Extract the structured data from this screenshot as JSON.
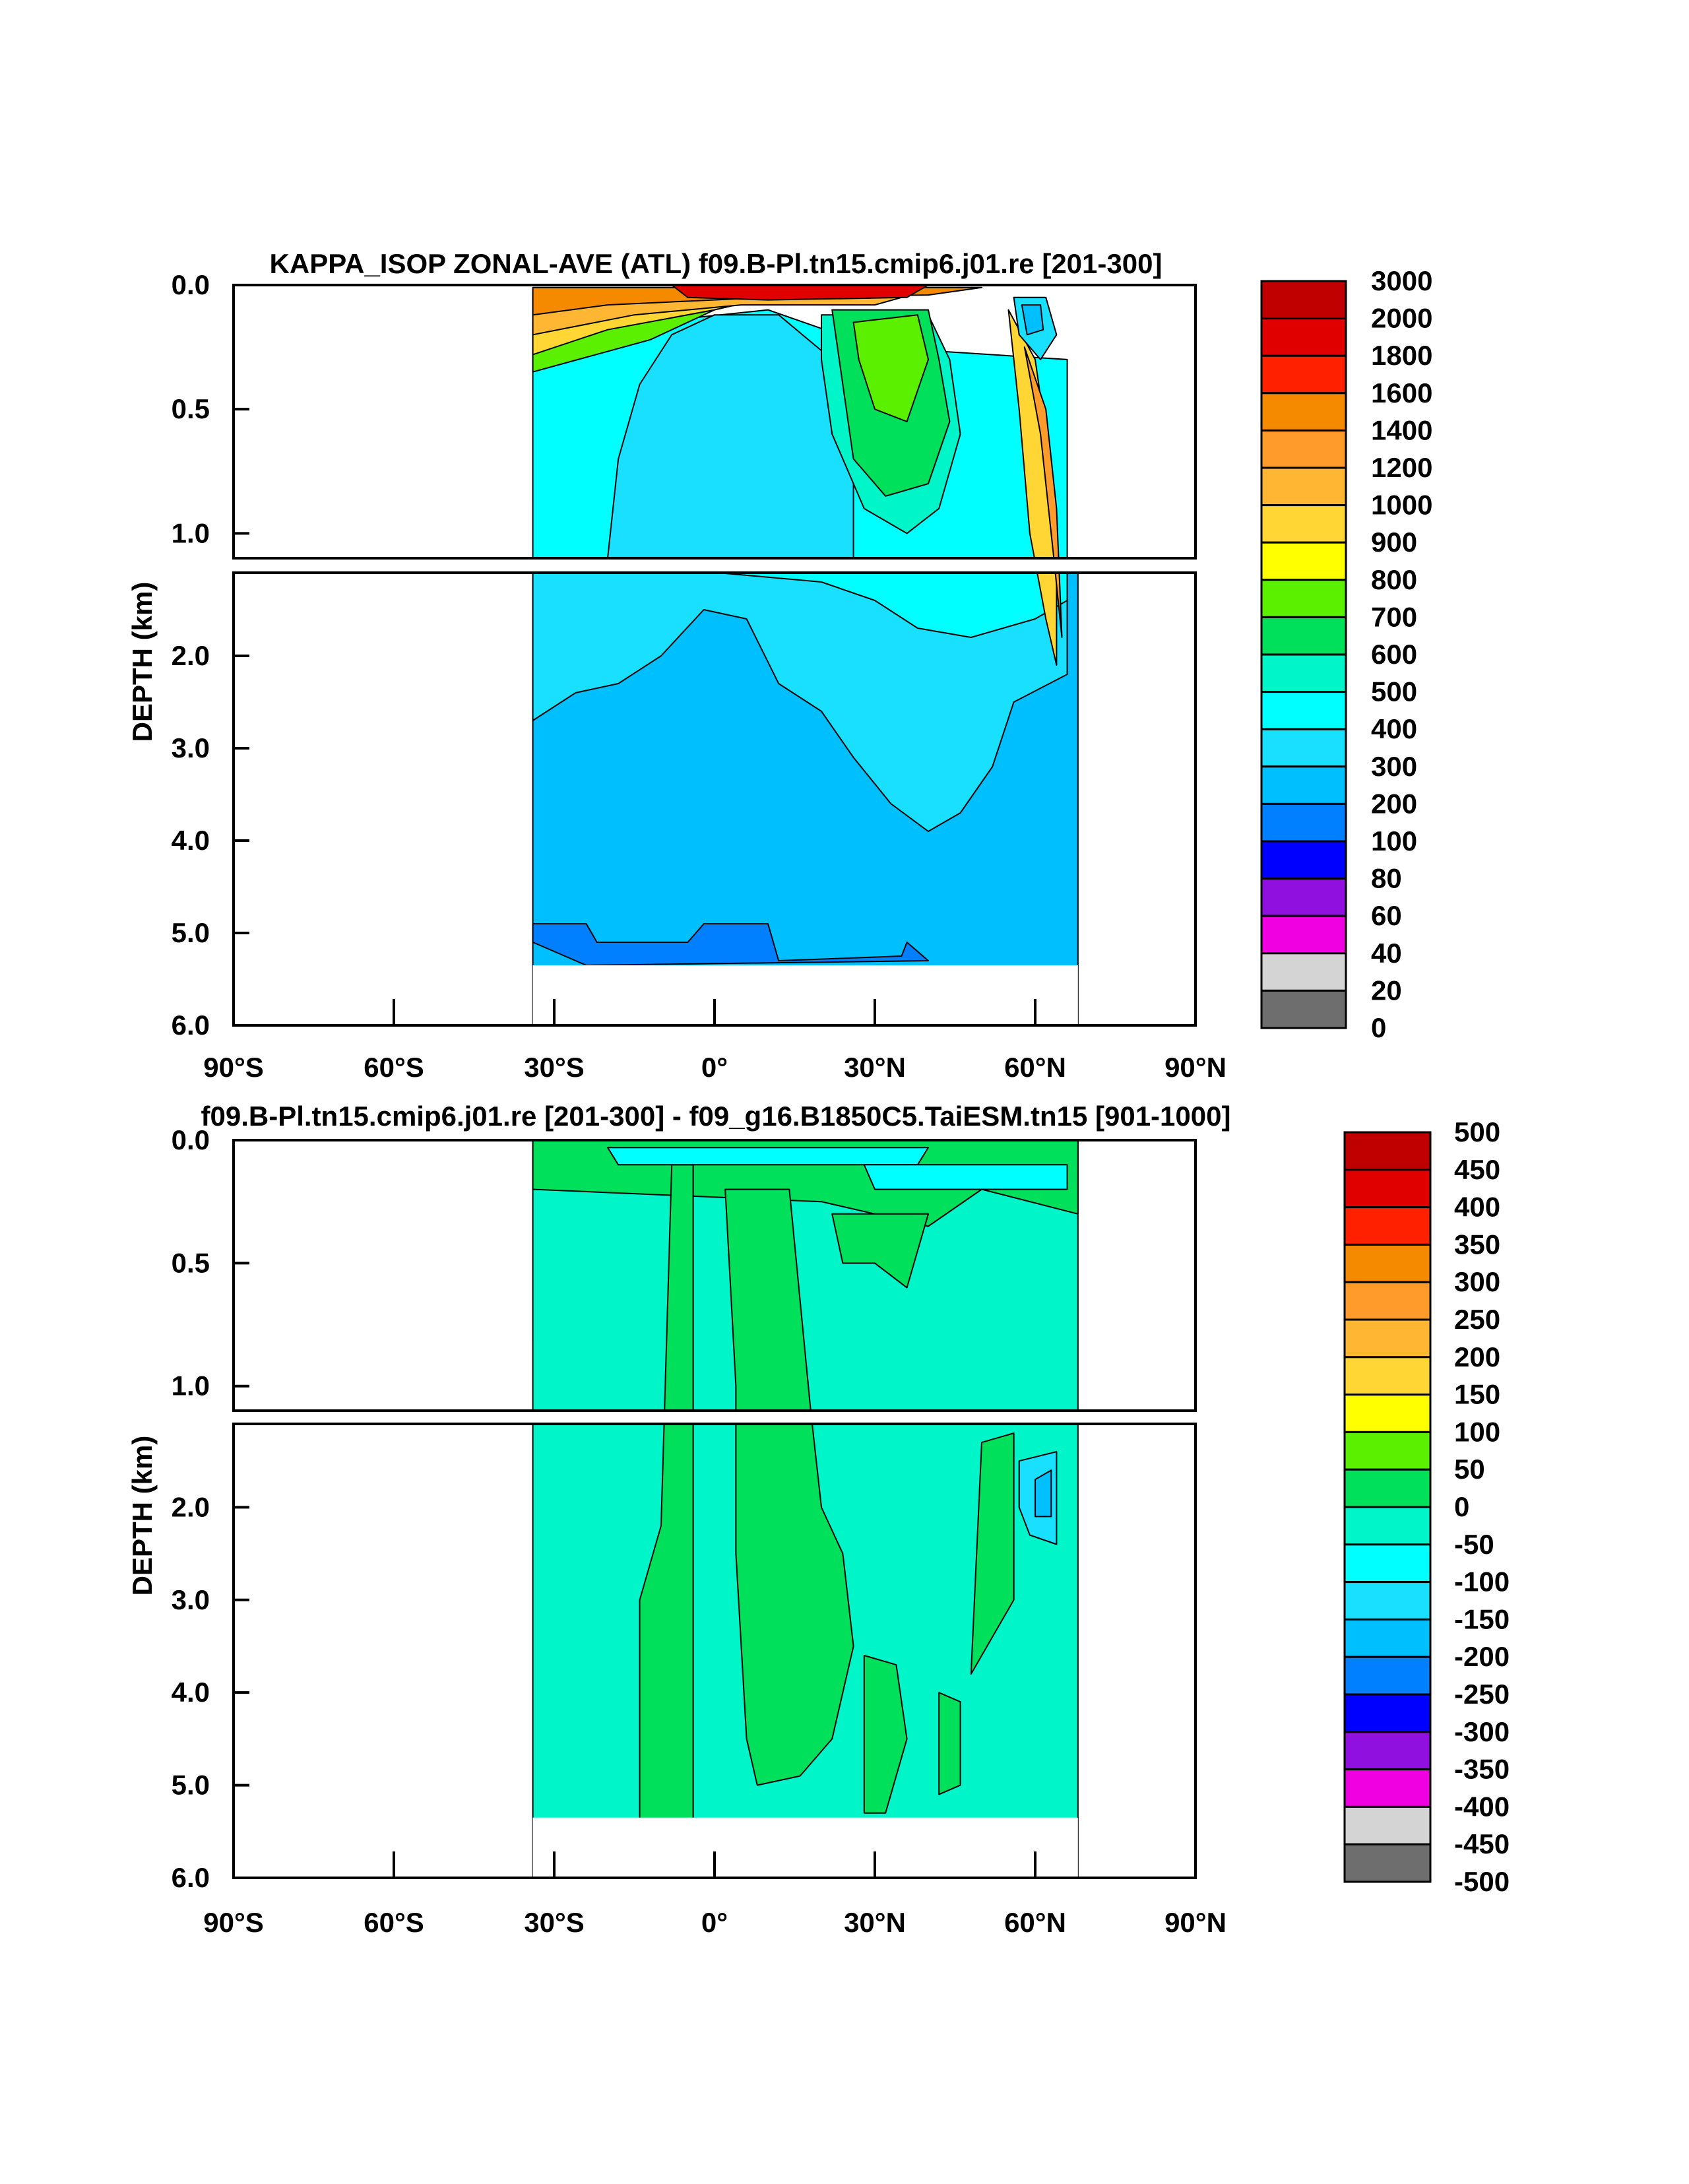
{
  "chart_data": [
    {
      "type": "heatmap",
      "title": "KAPPA_ISOP ZONAL-AVE (ATL) f09.B-Pl.tn15.cmip6.j01.re [201-300]",
      "ylabel": "DEPTH (km)",
      "xlabel": "",
      "x_ticks": [
        "90°S",
        "60°S",
        "30°S",
        "0°",
        "30°N",
        "60°N",
        "90°N"
      ],
      "x_range": [
        -90,
        90
      ],
      "y_ticks_upper": [
        "0.0",
        "0.5",
        "1.0"
      ],
      "y_ticks_lower": [
        "2.0",
        "3.0",
        "4.0",
        "5.0",
        "6.0"
      ],
      "y_range": [
        0,
        6
      ],
      "data_extent_lat": [
        -34,
        68
      ],
      "colorbar_levels": [
        "3000",
        "2000",
        "1800",
        "1600",
        "1400",
        "1200",
        "1000",
        "900",
        "800",
        "700",
        "600",
        "500",
        "400",
        "300",
        "200",
        "100",
        "80",
        "60",
        "40",
        "20",
        "0"
      ],
      "colorbar_colors": [
        "#c00000",
        "#e00000",
        "#ff2000",
        "#f58a00",
        "#ff9b2a",
        "#ffb733",
        "#ffd633",
        "#ffff00",
        "#5af000",
        "#00e05a",
        "#00f5c8",
        "#00ffff",
        "#1ae0ff",
        "#00bfff",
        "#0080ff",
        "#0000ff",
        "#9010e0",
        "#f000e0",
        "#d4d4d4",
        "#6e6e6e"
      ]
    },
    {
      "type": "heatmap",
      "title": "f09.B-Pl.tn15.cmip6.j01.re [201-300] - f09_g16.B1850C5.TaiESM.tn15 [901-1000]",
      "ylabel": "DEPTH (km)",
      "xlabel": "",
      "x_ticks": [
        "90°S",
        "60°S",
        "30°S",
        "0°",
        "30°N",
        "60°N",
        "90°N"
      ],
      "x_range": [
        -90,
        90
      ],
      "y_ticks_upper": [
        "0.0",
        "0.5",
        "1.0"
      ],
      "y_ticks_lower": [
        "2.0",
        "3.0",
        "4.0",
        "5.0",
        "6.0"
      ],
      "y_range": [
        0,
        6
      ],
      "data_extent_lat": [
        -34,
        68
      ],
      "colorbar_levels": [
        "500",
        "450",
        "400",
        "350",
        "300",
        "250",
        "200",
        "150",
        "100",
        "50",
        "0",
        "-50",
        "-100",
        "-150",
        "-200",
        "-250",
        "-300",
        "-350",
        "-400",
        "-450",
        "-500"
      ],
      "colorbar_colors": [
        "#c00000",
        "#e00000",
        "#ff2000",
        "#f58a00",
        "#ff9b2a",
        "#ffb733",
        "#ffd633",
        "#ffff00",
        "#5af000",
        "#00e05a",
        "#00f5c8",
        "#00ffff",
        "#1ae0ff",
        "#00bfff",
        "#0080ff",
        "#0000ff",
        "#9010e0",
        "#f000e0",
        "#d4d4d4",
        "#6e6e6e"
      ]
    }
  ]
}
